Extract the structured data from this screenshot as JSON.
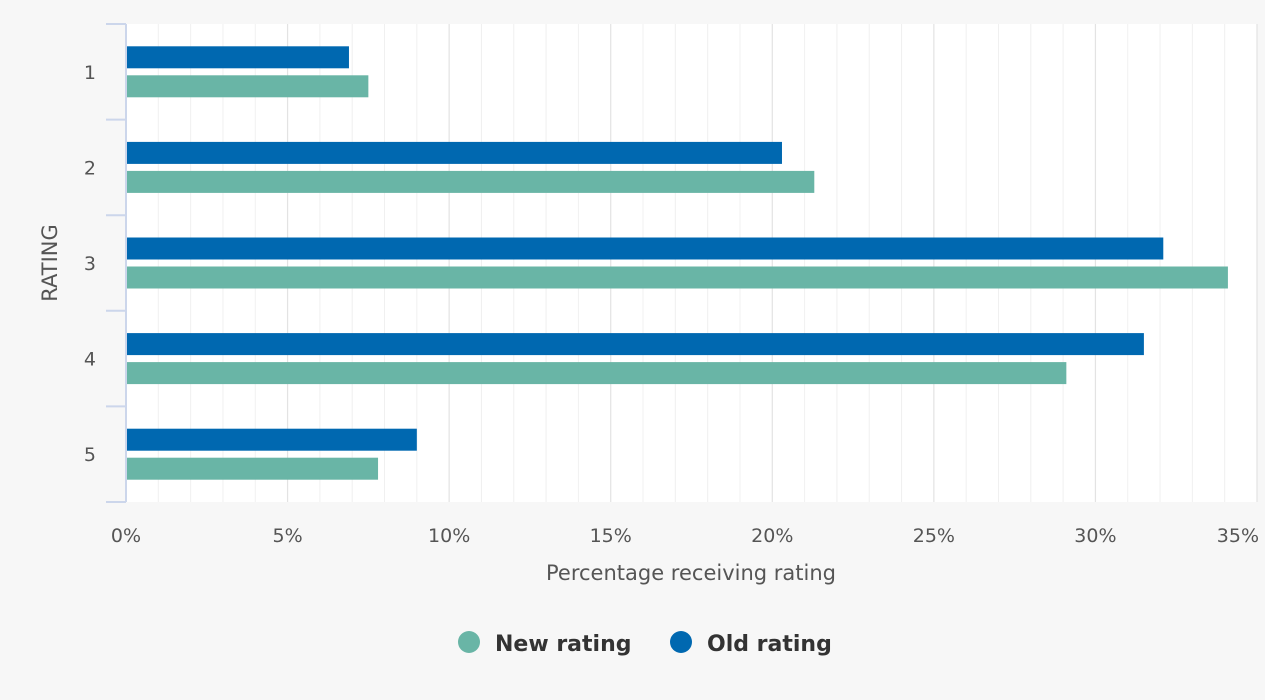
{
  "chart_data": {
    "type": "bar",
    "orientation": "horizontal",
    "categories": [
      "1",
      "2",
      "3",
      "4",
      "5"
    ],
    "series": [
      {
        "name": "Old rating",
        "values": [
          6.9,
          20.3,
          32.1,
          31.5,
          9.0
        ],
        "color": "#0068b0"
      },
      {
        "name": "New rating",
        "values": [
          7.5,
          21.3,
          34.1,
          29.1,
          7.8
        ],
        "color": "#69b5a6"
      }
    ],
    "xlabel": "Percentage receiving rating",
    "ylabel": "RATING",
    "xlim": [
      0,
      35
    ],
    "xticks": [
      0,
      5,
      10,
      15,
      20,
      25,
      30,
      35
    ],
    "xtick_labels": [
      "0%",
      "5%",
      "10%",
      "15%",
      "20%",
      "25%",
      "30%",
      "35%"
    ],
    "grid": true,
    "legend_position": "bottom-center",
    "legend": [
      {
        "label": "New rating",
        "color": "#69b5a6"
      },
      {
        "label": "Old rating",
        "color": "#0068b0"
      }
    ]
  }
}
